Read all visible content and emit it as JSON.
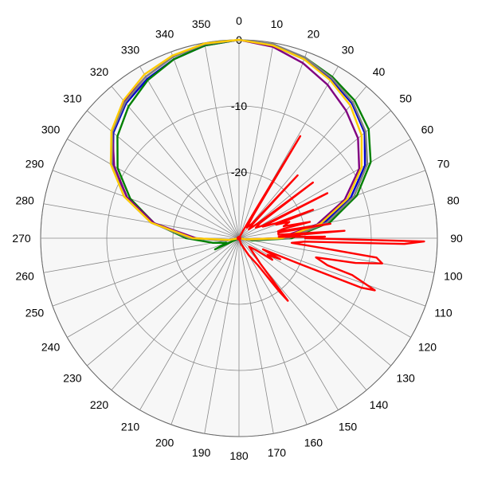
{
  "chart_data": {
    "type": "polar-line",
    "title": "",
    "angle_unit": "degrees",
    "angle_direction": "clockwise",
    "angle_zero": "top",
    "angle_ticks": [
      0,
      10,
      20,
      30,
      40,
      50,
      60,
      70,
      80,
      90,
      100,
      110,
      120,
      130,
      140,
      150,
      160,
      170,
      180,
      190,
      200,
      210,
      220,
      230,
      240,
      250,
      260,
      270,
      280,
      290,
      300,
      310,
      320,
      330,
      340,
      350
    ],
    "radial_ticks": [
      0,
      -10,
      -20
    ],
    "radial_range": [
      -30,
      0
    ],
    "grid": true,
    "series": [
      {
        "color": "#ff0000",
        "points": [
          [
            0,
            -30
          ],
          [
            10,
            -30
          ],
          [
            20,
            -30
          ],
          [
            28,
            -29
          ],
          [
            30,
            -26
          ],
          [
            31,
            -12
          ],
          [
            32,
            -26
          ],
          [
            36,
            -28
          ],
          [
            42,
            -27
          ],
          [
            43,
            -17
          ],
          [
            44,
            -27
          ],
          [
            48,
            -28
          ],
          [
            52,
            -26
          ],
          [
            53,
            -16
          ],
          [
            54,
            -26
          ],
          [
            58,
            -27
          ],
          [
            62,
            -26
          ],
          [
            63,
            -15
          ],
          [
            64,
            -26
          ],
          [
            68,
            -24
          ],
          [
            69,
            -18
          ],
          [
            70,
            -24
          ],
          [
            72,
            -22
          ],
          [
            75,
            -23
          ],
          [
            77,
            -19
          ],
          [
            78,
            -23
          ],
          [
            80,
            -24
          ],
          [
            81,
            -16
          ],
          [
            82,
            -24
          ],
          [
            85,
            -24
          ],
          [
            86,
            -14
          ],
          [
            87,
            -22
          ],
          [
            88,
            -24
          ],
          [
            89,
            -17
          ],
          [
            90,
            -20
          ],
          [
            91,
            -2
          ],
          [
            92,
            -5
          ],
          [
            93,
            -20
          ],
          [
            95,
            -22
          ],
          [
            97,
            -16
          ],
          [
            98,
            -9
          ],
          [
            100,
            -8
          ],
          [
            102,
            -12
          ],
          [
            104,
            -18
          ],
          [
            107,
            -16
          ],
          [
            108,
            -12
          ],
          [
            111,
            -8
          ],
          [
            112,
            -10
          ],
          [
            113,
            -20
          ],
          [
            115,
            -26
          ],
          [
            117,
            -23
          ],
          [
            120,
            -25
          ],
          [
            123,
            -24
          ],
          [
            125,
            -27
          ],
          [
            130,
            -28
          ],
          [
            140,
            -25
          ],
          [
            142,
            -18
          ],
          [
            143,
            -20
          ],
          [
            145,
            -25
          ],
          [
            150,
            -27
          ],
          [
            160,
            -29
          ],
          [
            170,
            -30
          ],
          [
            180,
            -30
          ],
          [
            360,
            -30
          ]
        ]
      },
      {
        "color": "#0000cc",
        "points": [
          [
            0,
            0
          ],
          [
            10,
            -0.4
          ],
          [
            20,
            -1.2
          ],
          [
            30,
            -2.2
          ],
          [
            40,
            -3.4
          ],
          [
            50,
            -5.2
          ],
          [
            60,
            -8
          ],
          [
            70,
            -12
          ],
          [
            80,
            -17
          ],
          [
            90,
            -23
          ],
          [
            100,
            -29
          ],
          [
            110,
            -30
          ],
          [
            250,
            -30
          ],
          [
            260,
            -28
          ],
          [
            270,
            -23
          ],
          [
            280,
            -17
          ],
          [
            290,
            -12
          ],
          [
            300,
            -8
          ],
          [
            310,
            -5.2
          ],
          [
            320,
            -3.4
          ],
          [
            330,
            -2.2
          ],
          [
            340,
            -1.2
          ],
          [
            350,
            -0.4
          ],
          [
            360,
            0
          ]
        ]
      },
      {
        "color": "#008000",
        "points": [
          [
            0,
            0
          ],
          [
            10,
            -0.3
          ],
          [
            20,
            -0.9
          ],
          [
            30,
            -1.8
          ],
          [
            40,
            -2.8
          ],
          [
            50,
            -4.4
          ],
          [
            60,
            -7
          ],
          [
            70,
            -11
          ],
          [
            80,
            -16
          ],
          [
            90,
            -22
          ],
          [
            100,
            -28
          ],
          [
            110,
            -30
          ],
          [
            240,
            -30
          ],
          [
            245,
            -26
          ],
          [
            250,
            -28
          ],
          [
            260,
            -26
          ],
          [
            270,
            -22
          ],
          [
            280,
            -17
          ],
          [
            290,
            -12.5
          ],
          [
            300,
            -8.8
          ],
          [
            310,
            -6
          ],
          [
            320,
            -4
          ],
          [
            330,
            -2.4
          ],
          [
            340,
            -1.2
          ],
          [
            350,
            -0.4
          ],
          [
            360,
            0
          ]
        ]
      },
      {
        "color": "#800080",
        "points": [
          [
            0,
            0
          ],
          [
            10,
            -0.6
          ],
          [
            20,
            -1.8
          ],
          [
            30,
            -3.2
          ],
          [
            40,
            -4.8
          ],
          [
            50,
            -6.5
          ],
          [
            60,
            -9
          ],
          [
            70,
            -13
          ],
          [
            80,
            -18
          ],
          [
            90,
            -24
          ],
          [
            100,
            -29
          ],
          [
            110,
            -30
          ],
          [
            250,
            -30
          ],
          [
            260,
            -28
          ],
          [
            270,
            -23.5
          ],
          [
            280,
            -17
          ],
          [
            290,
            -12
          ],
          [
            300,
            -8.2
          ],
          [
            310,
            -5
          ],
          [
            320,
            -3
          ],
          [
            330,
            -1.8
          ],
          [
            340,
            -0.8
          ],
          [
            350,
            -0.2
          ],
          [
            360,
            0
          ]
        ]
      },
      {
        "color": "#808080",
        "points": [
          [
            0,
            0
          ],
          [
            10,
            -0.2
          ],
          [
            20,
            -0.9
          ],
          [
            30,
            -2
          ],
          [
            40,
            -3.2
          ],
          [
            50,
            -5
          ],
          [
            60,
            -7.6
          ],
          [
            70,
            -11.5
          ],
          [
            80,
            -16.5
          ],
          [
            90,
            -22.5
          ],
          [
            100,
            -28.5
          ],
          [
            110,
            -30
          ],
          [
            250,
            -30
          ],
          [
            260,
            -28
          ],
          [
            270,
            -22.5
          ],
          [
            280,
            -16.5
          ],
          [
            290,
            -11.5
          ],
          [
            300,
            -7.8
          ],
          [
            310,
            -5
          ],
          [
            320,
            -3.2
          ],
          [
            330,
            -1.8
          ],
          [
            340,
            -0.8
          ],
          [
            350,
            -0.2
          ],
          [
            360,
            0
          ]
        ]
      },
      {
        "color": "#ffcc00",
        "points": [
          [
            0,
            0
          ],
          [
            10,
            -0.4
          ],
          [
            20,
            -1.2
          ],
          [
            30,
            -2.4
          ],
          [
            40,
            -3.8
          ],
          [
            50,
            -5.8
          ],
          [
            60,
            -8.6
          ],
          [
            70,
            -12.5
          ],
          [
            80,
            -17.5
          ],
          [
            90,
            -23.5
          ],
          [
            100,
            -29
          ],
          [
            110,
            -30
          ],
          [
            250,
            -30
          ],
          [
            260,
            -28.5
          ],
          [
            270,
            -23
          ],
          [
            280,
            -16.5
          ],
          [
            290,
            -11.5
          ],
          [
            300,
            -7.6
          ],
          [
            310,
            -4.8
          ],
          [
            320,
            -2.8
          ],
          [
            330,
            -1.4
          ],
          [
            340,
            -0.6
          ],
          [
            350,
            -0.1
          ],
          [
            360,
            0
          ]
        ]
      }
    ]
  }
}
